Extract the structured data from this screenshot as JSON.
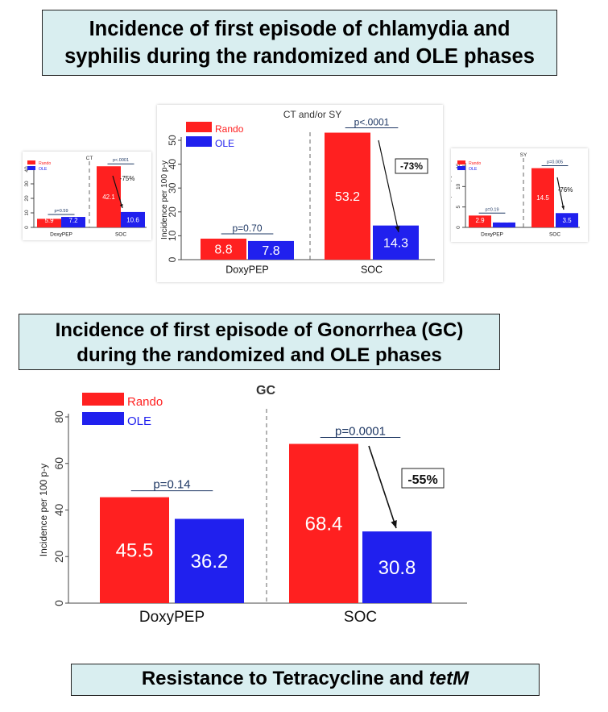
{
  "headings": {
    "top_line1": "Incidence of first episode of chlamydia and",
    "top_line2": "syphilis during the randomized and OLE phases",
    "mid_line1": "Incidence of first episode of Gonorrhea (GC)",
    "mid_line2": "during the randomized and OLE phases",
    "bottom_text": "Resistance to Tetracycline and ",
    "bottom_italic": "tetM"
  },
  "colors": {
    "rando": "#ff2020",
    "ole": "#2020ee",
    "pline": "#1f3864"
  },
  "chart_data": [
    {
      "id": "ct",
      "type": "bar",
      "title": "CT",
      "categories": [
        "DoxyPEP",
        "SOC"
      ],
      "series": [
        {
          "name": "Rando",
          "values": [
            5.9,
            42.1
          ]
        },
        {
          "name": "OLE",
          "values": [
            7.2,
            10.6
          ]
        }
      ],
      "pvalues": [
        "p=0.59",
        "p<.0001"
      ],
      "change": "-75%",
      "ylabel": "Incidence per 100 p-y",
      "ylim": [
        0,
        40
      ],
      "yticks": [
        0,
        10,
        20,
        30,
        40
      ],
      "legend": "top-left",
      "grid": false
    },
    {
      "id": "ctsy",
      "type": "bar",
      "title": "CT and/or SY",
      "categories": [
        "DoxyPEP",
        "SOC"
      ],
      "series": [
        {
          "name": "Rando",
          "values": [
            8.8,
            53.2
          ]
        },
        {
          "name": "OLE",
          "values": [
            7.8,
            14.3
          ]
        }
      ],
      "pvalues": [
        "p=0.70",
        "p<.0001"
      ],
      "change": "-73%",
      "ylabel": "Incidence per 100 p-y",
      "ylim": [
        0,
        50
      ],
      "yticks": [
        0,
        10,
        20,
        30,
        40,
        50
      ],
      "legend": "top-left",
      "grid": false
    },
    {
      "id": "sy",
      "type": "bar",
      "title": "SY",
      "categories": [
        "DoxyPEP",
        "SOC"
      ],
      "series": [
        {
          "name": "Rando",
          "values": [
            2.9,
            14.5
          ]
        },
        {
          "name": "OLE",
          "values": [
            1.2,
            3.5
          ]
        }
      ],
      "pvalues": [
        "p=0.19",
        "p=0.005"
      ],
      "change": "-76%",
      "ylabel": "Incidence per 100 p-y",
      "ylim": [
        0,
        15
      ],
      "yticks": [
        0,
        5,
        10,
        15
      ],
      "legend": "top-left",
      "grid": false
    },
    {
      "id": "gc",
      "type": "bar",
      "title": "GC",
      "categories": [
        "DoxyPEP",
        "SOC"
      ],
      "series": [
        {
          "name": "Rando",
          "values": [
            45.5,
            68.4
          ]
        },
        {
          "name": "OLE",
          "values": [
            36.2,
            30.8
          ]
        }
      ],
      "pvalues": [
        "p=0.14",
        "p=0.0001"
      ],
      "change": "-55%",
      "ylabel": "Incidence per 100 p-y",
      "ylim": [
        0,
        80
      ],
      "yticks": [
        0,
        20,
        40,
        60,
        80
      ],
      "legend": "top-left",
      "grid": false
    }
  ]
}
